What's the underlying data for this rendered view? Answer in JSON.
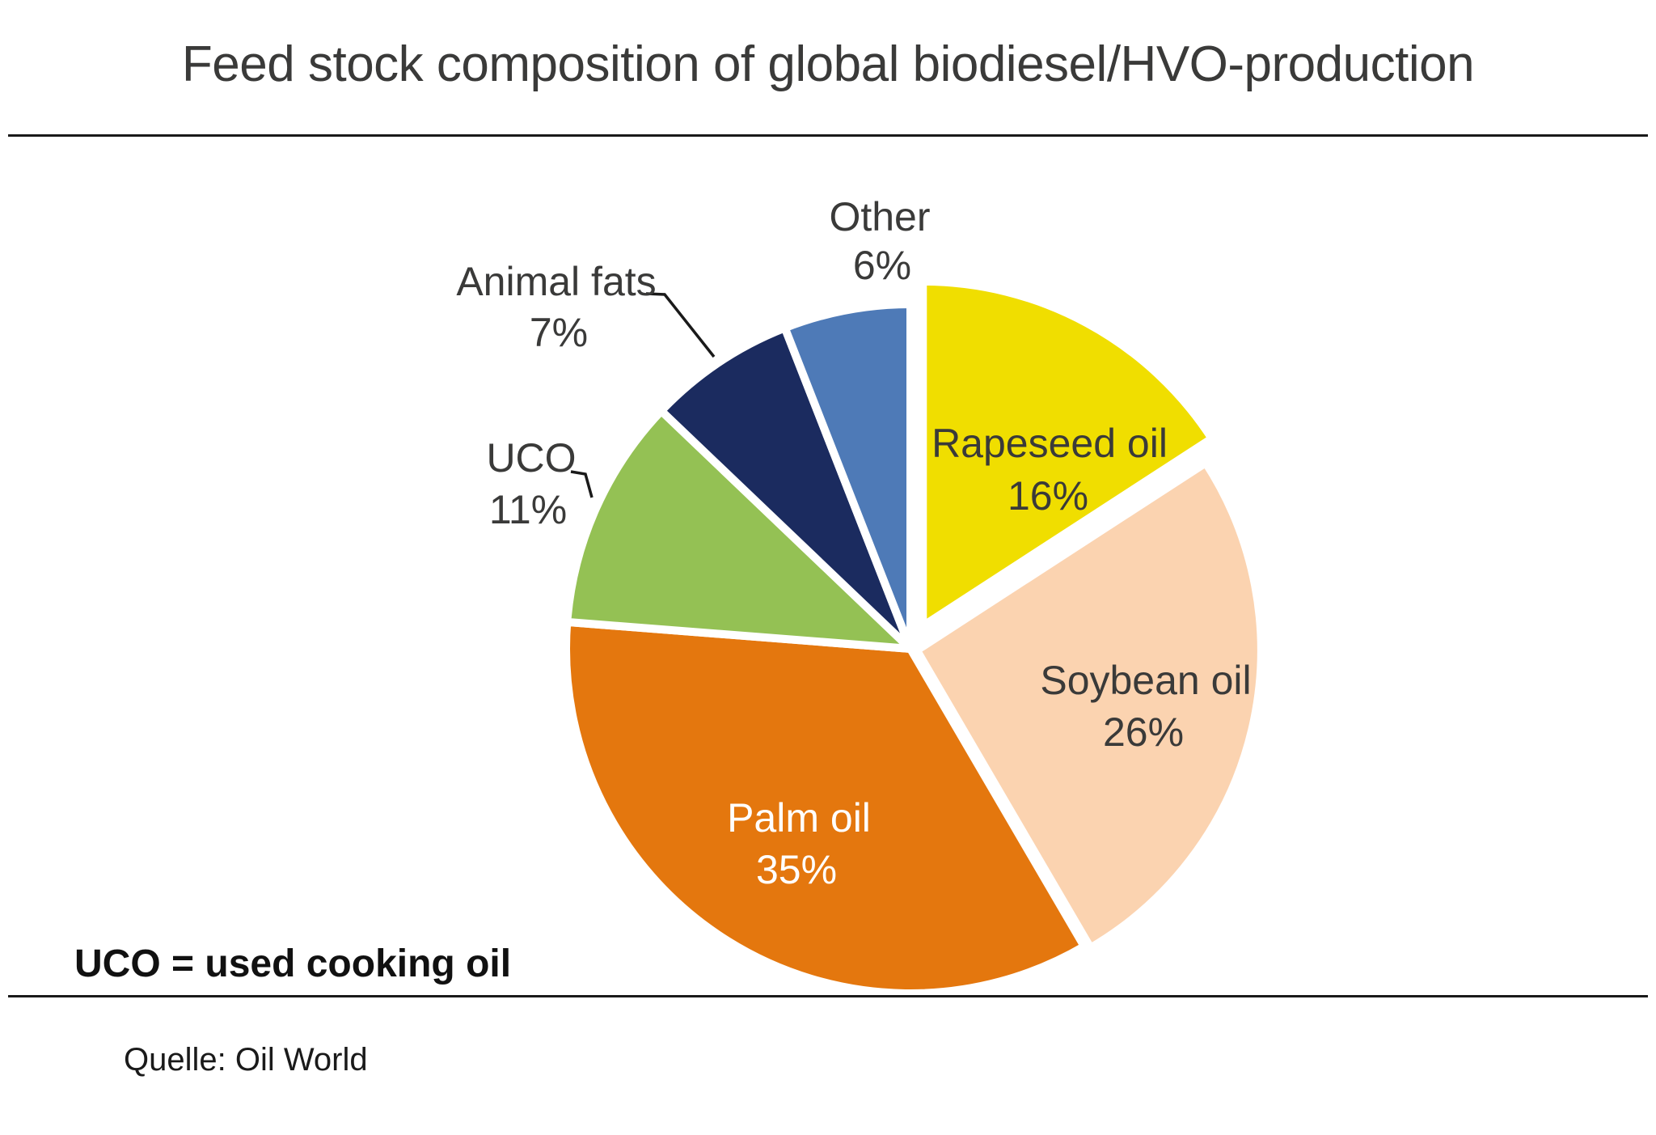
{
  "chart_data": {
    "type": "pie",
    "title": "Feed stock composition of global biodiesel/HVO-production",
    "unit": "percent",
    "direction": "clockwise",
    "start_angle_deg": 0,
    "legend_position": "none (direct labels on and around slices)",
    "note": "UCO = used cooking oil",
    "source": "Quelle: Oil World",
    "slices": [
      {
        "name": "Rapeseed oil",
        "value": 16,
        "pct": "16%",
        "color": "#F0DE00",
        "label_color": "#3a3a39",
        "label_position": "inside"
      },
      {
        "name": "Soybean oil",
        "value": 26,
        "pct": "26%",
        "color": "#FBD3B0",
        "label_color": "#3a3a39",
        "label_position": "inside"
      },
      {
        "name": "Palm oil",
        "value": 35,
        "pct": "35%",
        "color": "#E4770E",
        "label_color": "#ffffff",
        "label_position": "inside"
      },
      {
        "name": "UCO",
        "value": 11,
        "pct": "11%",
        "color": "#94C154",
        "label_color": "#3a3a39",
        "label_position": "outside-left with leader line"
      },
      {
        "name": "Animal fats",
        "value": 7,
        "pct": "7%",
        "color": "#1B2B5F",
        "label_color": "#3a3a39",
        "label_position": "outside-upper-left with leader line"
      },
      {
        "name": "Other",
        "value": 6,
        "pct": "6%",
        "color": "#4E7AB7",
        "label_color": "#3a3a39",
        "label_position": "outside-top"
      }
    ]
  }
}
